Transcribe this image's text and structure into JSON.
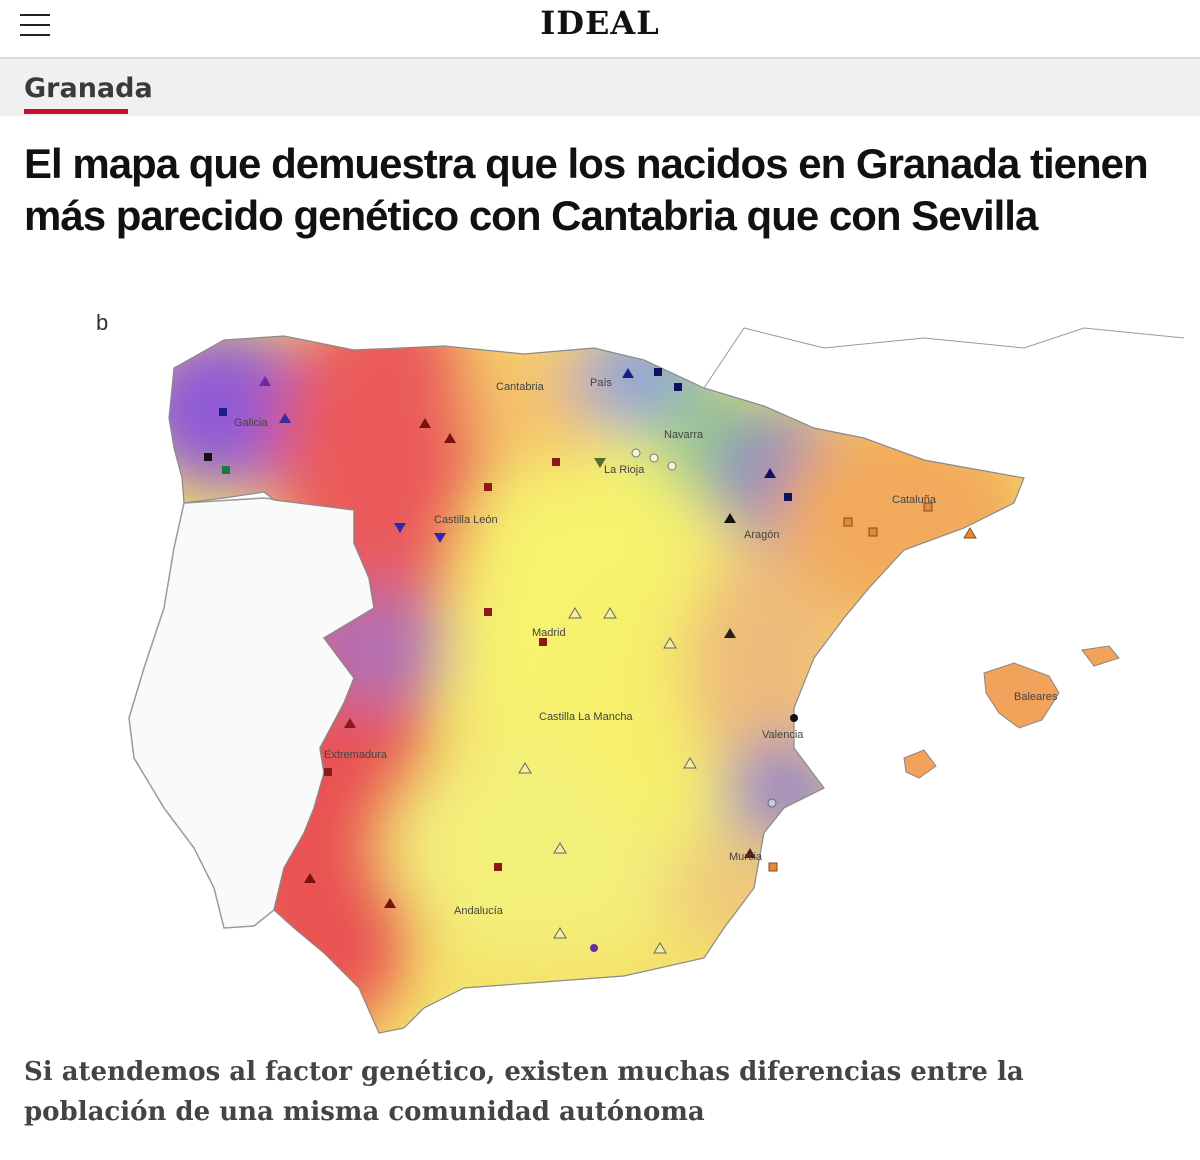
{
  "header": {
    "brand": "IDEAL",
    "menu_icon": "hamburger-menu-icon"
  },
  "section": {
    "label": "Granada",
    "accent_color": "#c8102e"
  },
  "article": {
    "headline": "El mapa que demuestra que los nacidos en Granada tienen más parecido genético con Cantabria que con Sevilla",
    "subheadline": "Si atendemos al factor genético, existen muchas diferencias entre la población de una misma comunidad autónoma"
  },
  "map": {
    "panel_label": "b",
    "regions": {
      "galicia": "Galicia",
      "cantabria": "Cantabria",
      "pais_vasco": "País",
      "navarra": "Navarra",
      "la_rioja": "La Rioja",
      "castilla_leon": "Castilla León",
      "aragon": "Aragón",
      "cataluna": "Cataluña",
      "madrid": "Madrid",
      "castilla_la_mancha": "Castilla La Mancha",
      "extremadura": "Extremadura",
      "valencia": "Valencia",
      "murcia": "Murcia",
      "andalucia": "Andalucía",
      "baleares": "Baleares"
    }
  }
}
